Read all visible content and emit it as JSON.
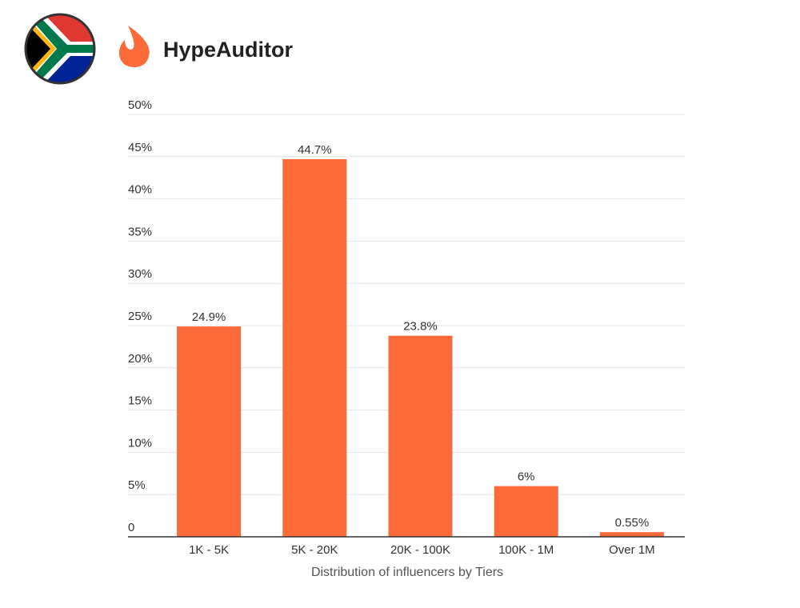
{
  "brand": "HypeAuditor",
  "chart_data": {
    "type": "bar",
    "x_label": "Distribution of influencers by Tiers",
    "categories": [
      "1K - 5K",
      "5K - 20K",
      "20K - 100K",
      "100K - 1M",
      "Over 1M"
    ],
    "values": [
      24.9,
      44.7,
      23.8,
      6,
      0.55
    ],
    "value_labels": [
      "24.9%",
      "44.7%",
      "23.8%",
      "6%",
      "0.55%"
    ],
    "color": "#fc6a3a",
    "ylim": [
      0,
      50
    ],
    "yticks": [
      0,
      {
        "value": 5,
        "label": "5%"
      },
      {
        "value": 10,
        "label": "10%"
      },
      {
        "value": 15,
        "label": "15%"
      },
      {
        "value": 20,
        "label": "20%"
      },
      {
        "value": 25,
        "label": "25%"
      },
      {
        "value": 30,
        "label": "30%"
      },
      {
        "value": 35,
        "label": "35%"
      },
      {
        "value": 40,
        "label": "40%"
      },
      {
        "value": 45,
        "label": "45%"
      },
      {
        "value": 50,
        "label": "50%"
      }
    ],
    "grid": true
  }
}
